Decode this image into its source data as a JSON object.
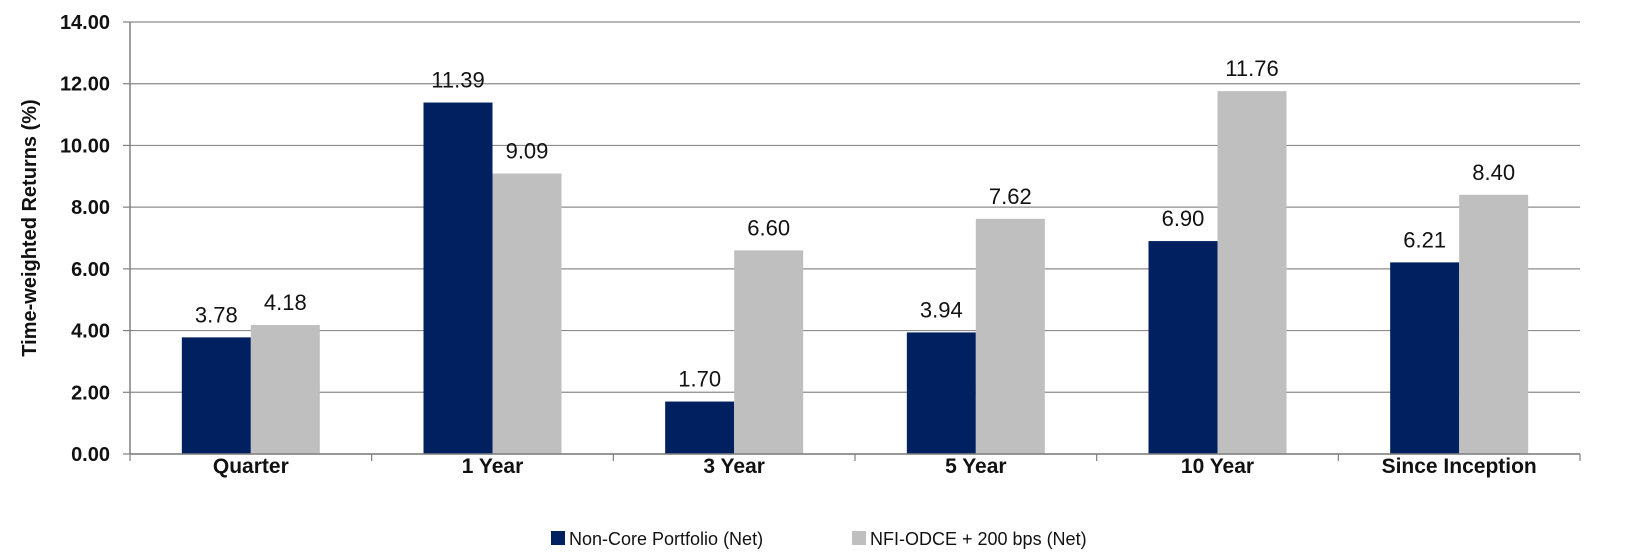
{
  "chart_data": {
    "type": "bar",
    "categories": [
      "Quarter",
      "1 Year",
      "3 Year",
      "5 Year",
      "10 Year",
      "Since Inception"
    ],
    "series": [
      {
        "name": "Non-Core Portfolio (Net)",
        "values": [
          3.78,
          11.39,
          1.7,
          3.94,
          6.9,
          6.21
        ],
        "color": "#002060"
      },
      {
        "name": "NFI-ODCE + 200 bps (Net)",
        "values": [
          4.18,
          9.09,
          6.6,
          7.62,
          11.76,
          8.4
        ],
        "color": "#BFBFBF"
      }
    ],
    "data_labels": [
      [
        "3.78",
        "11.39",
        "1.70",
        "3.94",
        "6.90",
        "6.21"
      ],
      [
        "4.18",
        "9.09",
        "6.60",
        "7.62",
        "11.76",
        "8.40"
      ]
    ],
    "yticks": [
      "0.00",
      "2.00",
      "4.00",
      "6.00",
      "8.00",
      "10.00",
      "12.00",
      "14.00"
    ],
    "title": "",
    "xlabel": "",
    "ylabel": "Time-weighted Returns (%)",
    "ylim": [
      0,
      14
    ],
    "grid": true,
    "legend_position": "bottom"
  }
}
